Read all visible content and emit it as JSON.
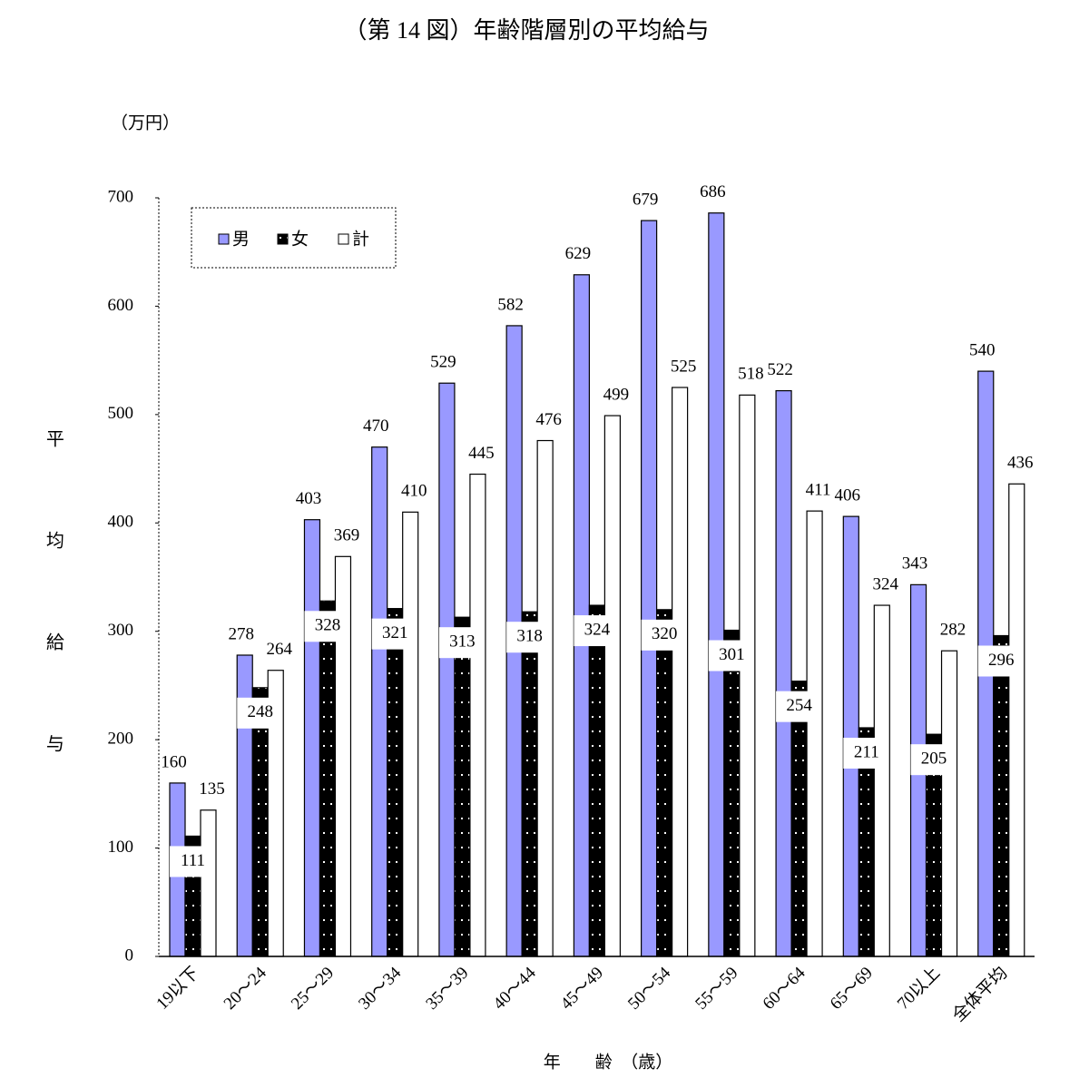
{
  "chart_data": {
    "type": "bar",
    "title": "（第 14 図）年齢階層別の平均給与",
    "y_unit": "（万円）",
    "y_label": "平均給与",
    "x_label": "年　　齢　（歳）",
    "categories": [
      "19以下",
      "20～24",
      "25～29",
      "30～34",
      "35～39",
      "40～44",
      "45～49",
      "50～54",
      "55～59",
      "60～64",
      "65～69",
      "70以上",
      "全体平均"
    ],
    "series": [
      {
        "name": "男",
        "color": "#9999ff",
        "values": [
          160,
          278,
          403,
          470,
          529,
          582,
          629,
          679,
          686,
          522,
          406,
          343,
          540
        ]
      },
      {
        "name": "女",
        "color": "#000000",
        "values": [
          111,
          248,
          328,
          321,
          313,
          318,
          324,
          320,
          301,
          254,
          211,
          205,
          296
        ]
      },
      {
        "name": "計",
        "color": "#ffffff",
        "values": [
          135,
          264,
          369,
          410,
          445,
          476,
          499,
          525,
          518,
          411,
          324,
          282,
          436
        ]
      }
    ],
    "ylim": [
      0,
      700
    ],
    "yticks": [
      0,
      100,
      200,
      300,
      400,
      500,
      600,
      700
    ],
    "legend": "top-left",
    "grid": false
  }
}
